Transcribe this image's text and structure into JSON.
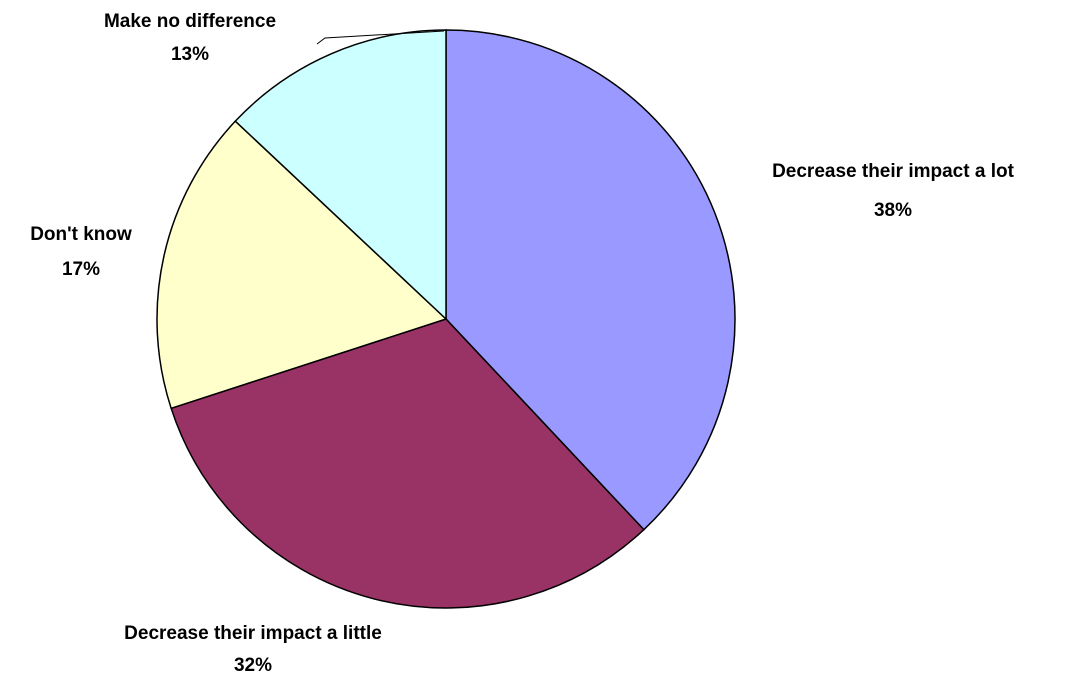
{
  "chart_data": {
    "type": "pie",
    "slices": [
      {
        "label": "Decrease their impact a lot",
        "value": 38,
        "value_label": "38%",
        "color": "#9999FF"
      },
      {
        "label": "Decrease their impact a little",
        "value": 32,
        "value_label": "32%",
        "color": "#993366"
      },
      {
        "label": "Don't know",
        "value": 17,
        "value_label": "17%",
        "color": "#FFFFCC"
      },
      {
        "label": "Make no difference",
        "value": 13,
        "value_label": "13%",
        "color": "#CCFFFF"
      }
    ],
    "start": "12 o'clock",
    "direction": "clockwise",
    "legend": "none",
    "title": ""
  }
}
